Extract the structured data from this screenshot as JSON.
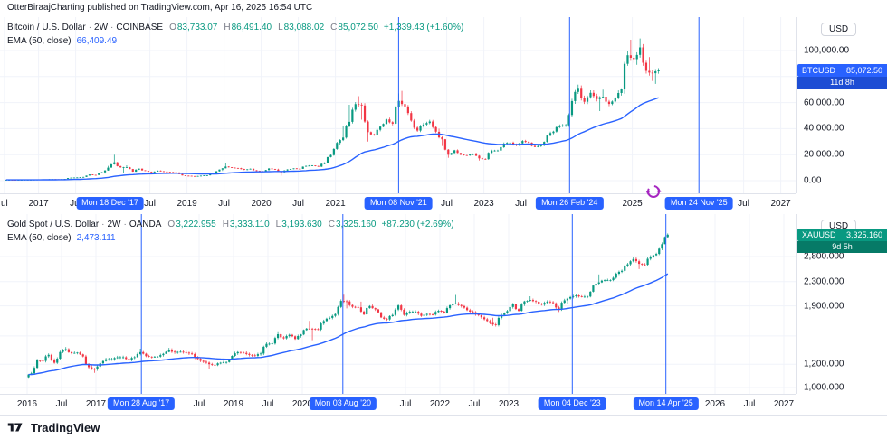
{
  "header": {
    "publisher": "OtterBiraajCharting published on TradingView.com, Apr 16, 2025 16:54 UTC"
  },
  "footer": {
    "brand": "TradingView"
  },
  "colors": {
    "up": "#089981",
    "down": "#f23645",
    "ema": "#2962ff",
    "grid": "#f0f3fa",
    "axis_text": "#131722",
    "muted": "#787b86",
    "marker": "#2962ff",
    "border": "#e0e3eb"
  },
  "chart_data": [
    {
      "type": "candlestick",
      "title": "Bitcoin / U.S. Dollar",
      "sep": "·",
      "interval": "2W",
      "exchange": "COINBASE",
      "ohlc_labels": {
        "o": "O",
        "h": "H",
        "l": "L",
        "c": "C"
      },
      "ohlc": {
        "o": "83,733.07",
        "h": "86,491.40",
        "l": "83,088.02",
        "c": "85,072.50",
        "change": "+1,339.43 (+1.60%)"
      },
      "ema_legend": {
        "label": "EMA (50, close)",
        "value": "66,409.49",
        "period": 50
      },
      "price_label": {
        "symbol": "BTCUSD",
        "price": "85,072.50",
        "countdown": "11d 8h",
        "bg": "#2962ff",
        "countdown_bg": "#1d4dd4"
      },
      "scale": {
        "currency": "USD",
        "mode": "linear",
        "ticks": [
          {
            "v": 100000,
            "label": "100,000.00"
          },
          {
            "v": 60000,
            "label": "60,000.00"
          },
          {
            "v": 40000,
            "label": "40,000.00"
          },
          {
            "v": 20000,
            "label": "20,000.00"
          },
          {
            "v": 0,
            "label": "0.00"
          }
        ],
        "grid_only": [
          80000
        ]
      },
      "x_axis": [
        {
          "t": 2016.54,
          "label": "ul"
        },
        {
          "t": 2017,
          "label": "2017"
        },
        {
          "t": 2017.5,
          "label": "Jul"
        },
        {
          "t": 2017.963,
          "label": "Mon 18 Dec '17",
          "marker": true,
          "dashed": true
        },
        {
          "t": 2018.5,
          "label": "Jul"
        },
        {
          "t": 2019,
          "label": "2019"
        },
        {
          "t": 2019.5,
          "label": "Jul"
        },
        {
          "t": 2020,
          "label": "2020"
        },
        {
          "t": 2020.5,
          "label": "Jul"
        },
        {
          "t": 2021,
          "label": "2021"
        },
        {
          "t": 2021.852,
          "label": "Mon 08 Nov '21",
          "marker": true
        },
        {
          "t": 2022.5,
          "label": "Jul"
        },
        {
          "t": 2023,
          "label": "2023"
        },
        {
          "t": 2023.5,
          "label": "Jul"
        },
        {
          "t": 2024.155,
          "label": "Mon 26 Feb '24",
          "marker": true
        },
        {
          "t": 2025,
          "label": "2025"
        },
        {
          "t": 2025.898,
          "label": "Mon 24 Nov '25",
          "marker": true
        },
        {
          "t": 2026.5,
          "label": "Jul"
        },
        {
          "t": 2027,
          "label": "2027"
        }
      ],
      "start": {
        "year": 2016,
        "month": 7
      },
      "monthly_close": [
        625,
        575,
        610,
        700,
        745,
        965,
        965,
        1190,
        1080,
        1350,
        2300,
        2480,
        2875,
        4700,
        4340,
        6450,
        [
          10000,
          11400,
          5500
        ],
        [
          14100,
          19900,
          10800
        ],
        10200,
        [
          10300,
          11800,
          6000
        ],
        6930,
        9250,
        7500,
        6400,
        7730,
        7030,
        6630,
        6300,
        4030,
        3740,
        3460,
        3850,
        4100,
        5330,
        8560,
        [
          10800,
          13880,
          7500
        ],
        10000,
        9600,
        8300,
        9150,
        7550,
        7200,
        9350,
        8550,
        [
          6440,
          9180,
          3850
        ],
        8620,
        9450,
        9140,
        11350,
        11650,
        10780,
        13800,
        19700,
        29000,
        [
          33100,
          42000,
          27700
        ],
        [
          45200,
          58350,
          32300
        ],
        58800,
        [
          57750,
          64900,
          46900
        ],
        [
          37300,
          59600,
          30000
        ],
        35000,
        41500,
        47100,
        43800,
        [
          61300,
          67000,
          43300
        ],
        [
          57000,
          69000,
          53300
        ],
        46200,
        38500,
        43200,
        45500,
        37600,
        [
          31800,
          40000,
          26700
        ],
        [
          19900,
          32000,
          17600
        ],
        23300,
        20050,
        19400,
        20500,
        [
          17150,
          21500,
          15500
        ],
        16550,
        23100,
        23100,
        28500,
        29250,
        27200,
        30480,
        29230,
        25930,
        26960,
        34650,
        37700,
        42280,
        42580,
        61200,
        [
          71300,
          73800,
          59000
        ],
        60600,
        67500,
        62700,
        [
          64600,
          70000,
          53500
        ],
        58970,
        63330,
        70200,
        [
          96400,
          99800,
          66800
        ],
        [
          93400,
          108300,
          90500
        ],
        [
          102400,
          109300,
          89000
        ],
        84350,
        [
          82550,
          95000,
          76600
        ],
        [
          85072,
          86491,
          74400
        ]
      ],
      "last_close": 85072.5
    },
    {
      "type": "candlestick",
      "title": "Gold Spot / U.S. Dollar",
      "sep": "·",
      "interval": "2W",
      "exchange": "OANDA",
      "ohlc_labels": {
        "o": "O",
        "h": "H",
        "l": "L",
        "c": "C"
      },
      "ohlc": {
        "o": "3,222.955",
        "h": "3,333.110",
        "l": "3,193.630",
        "c": "3,325.160",
        "change": "+87.230 (+2.69%)"
      },
      "ema_legend": {
        "label": "EMA (50, close)",
        "value": "2,473.111",
        "period": 50
      },
      "price_label": {
        "symbol": "XAUUSD",
        "price": "3,325.160",
        "countdown": "9d 5h",
        "bg": "#089981",
        "countdown_bg": "#067a67"
      },
      "scale": {
        "currency": "USD",
        "mode": "log",
        "ticks": [
          {
            "v": 2800,
            "label": "2,800.000"
          },
          {
            "v": 2300,
            "label": "2,300.000"
          },
          {
            "v": 1900,
            "label": "1,900.000"
          },
          {
            "v": 1200,
            "label": "1,200.000"
          },
          {
            "v": 1000,
            "label": "1,000.000"
          }
        ],
        "grid_only": [
          1500
        ]
      },
      "x_axis": [
        {
          "t": 2016,
          "label": "2016"
        },
        {
          "t": 2016.5,
          "label": "Jul"
        },
        {
          "t": 2017,
          "label": "2017"
        },
        {
          "t": 2017.66,
          "label": "Mon 28 Aug '17",
          "marker": true
        },
        {
          "t": 2018.5,
          "label": "Jul"
        },
        {
          "t": 2019,
          "label": "2019"
        },
        {
          "t": 2019.5,
          "label": "Jul"
        },
        {
          "t": 2020,
          "label": "2020"
        },
        {
          "t": 2020.59,
          "label": "Mon 03 Aug '20",
          "marker": true
        },
        {
          "t": 2021.5,
          "label": "Jul"
        },
        {
          "t": 2022,
          "label": "2022"
        },
        {
          "t": 2022.5,
          "label": "Jul"
        },
        {
          "t": 2023,
          "label": "2023"
        },
        {
          "t": 2023.925,
          "label": "Mon 04 Dec '23",
          "marker": true
        },
        {
          "t": 2025.285,
          "label": "Mon 14 Apr '25",
          "marker": true
        },
        {
          "t": 2026,
          "label": "2026"
        },
        {
          "t": 2026.5,
          "label": "Jul"
        },
        {
          "t": 2027,
          "label": "2027"
        },
        {
          "t": 2027.5,
          "label": "Jul"
        }
      ],
      "start": {
        "year": 2016,
        "month": 1
      },
      "monthly_close": [
        1118,
        1238,
        1233,
        1293,
        1215,
        1322,
        [
          1351,
          1375,
          1310
        ],
        1309,
        1316,
        1277,
        1173,
        [
          1152,
          1200,
          1122
        ],
        1210,
        1249,
        1249,
        1268,
        1269,
        1242,
        1269,
        [
          1321,
          1357,
          1267
        ],
        1280,
        1271,
        1275,
        1303,
        [
          1345,
          1366,
          1307
        ],
        1318,
        1325,
        1315,
        1301,
        1253,
        1224,
        [
          1201,
          1245,
          1160
        ],
        1192,
        1215,
        1222,
        1282,
        1321,
        1313,
        1292,
        1283,
        1306,
        1409,
        1414,
        [
          1520,
          1555,
          1400
        ],
        1472,
        1513,
        1464,
        1517,
        1589,
        [
          1586,
          1689,
          1451
        ],
        1577,
        1687,
        1730,
        1781,
        1976,
        [
          1968,
          2075,
          1863
        ],
        1886,
        1879,
        [
          1777,
          1965,
          1765
        ],
        1898,
        1848,
        1734,
        1708,
        1769,
        1907,
        1770,
        1814,
        1814,
        1757,
        1783,
        1775,
        1829,
        1797,
        1909,
        [
          1937,
          2070,
          1890
        ],
        1897,
        1837,
        1807,
        1766,
        1711,
        1661,
        [
          1634,
          1730,
          1615
        ],
        1769,
        1824,
        1928,
        1827,
        1969,
        [
          1990,
          2049,
          1950
        ],
        1963,
        1919,
        1965,
        1940,
        [
          1849,
          1953,
          1810
        ],
        1984,
        [
          2036,
          2052,
          1932
        ],
        2063,
        2040,
        2044,
        2230,
        [
          2286,
          2432,
          2145
        ],
        2327,
        2327,
        2448,
        2503,
        2635,
        [
          2744,
          2790,
          2605
        ],
        [
          2643,
          2790,
          2536
        ],
        2625,
        2798,
        2858,
        [
          3085,
          3128,
          2832
        ],
        [
          3325,
          3357,
          3167
        ]
      ],
      "last_close": 3325.16
    }
  ]
}
